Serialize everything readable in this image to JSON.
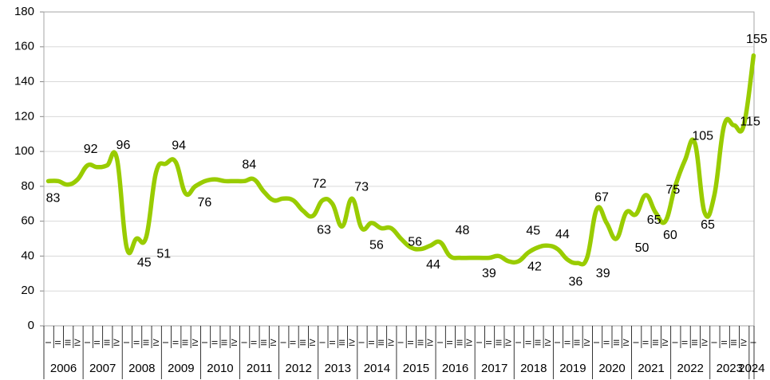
{
  "chart_data": {
    "type": "line",
    "categories": [
      "I",
      "II",
      "III",
      "IV",
      "I",
      "II",
      "III",
      "IV",
      "I",
      "II",
      "III",
      "IV",
      "I",
      "II",
      "III",
      "IV",
      "I",
      "II",
      "III",
      "IV",
      "I",
      "II",
      "III",
      "IV",
      "I",
      "II",
      "III",
      "IV",
      "I",
      "II",
      "III",
      "IV",
      "I",
      "II",
      "III",
      "IV",
      "I",
      "II",
      "III",
      "IV",
      "I",
      "II",
      "III",
      "IV",
      "I",
      "II",
      "III",
      "IV",
      "I",
      "II",
      "III",
      "IV",
      "I",
      "II",
      "III",
      "IV",
      "I",
      "II",
      "III",
      "IV",
      "I",
      "II",
      "III",
      "IV",
      "I",
      "II",
      "III",
      "IV",
      "I",
      "II",
      "III",
      "IV",
      "I"
    ],
    "years": [
      "2006",
      "2007",
      "2008",
      "2009",
      "2010",
      "2011",
      "2012",
      "2013",
      "2014",
      "2015",
      "2016",
      "2017",
      "2018",
      "2019",
      "2020",
      "2021",
      "2022",
      "2023",
      "2024"
    ],
    "series": [
      {
        "color": "#99cc00",
        "values": [
          83,
          83,
          81,
          84,
          92,
          91,
          92,
          96,
          45,
          50,
          51,
          88,
          93,
          94,
          76,
          80,
          83,
          84,
          83,
          83,
          83,
          84,
          77,
          72,
          73,
          72,
          66,
          63,
          72,
          70,
          57,
          73,
          56,
          59,
          56,
          56,
          50,
          45,
          44,
          46,
          48,
          40,
          39,
          39,
          39,
          39,
          40,
          37,
          37,
          42,
          45,
          46,
          44,
          38,
          36,
          39,
          67,
          59,
          50,
          65,
          64,
          75,
          65,
          60,
          80,
          95,
          105,
          65,
          75,
          115,
          115,
          115,
          155
        ],
        "value_labels": [
          "83",
          null,
          null,
          null,
          "92",
          null,
          null,
          "96",
          "45",
          null,
          "51",
          null,
          null,
          "94",
          "76",
          null,
          null,
          null,
          null,
          null,
          null,
          "84",
          null,
          null,
          null,
          null,
          null,
          "63",
          "72",
          null,
          null,
          "73",
          null,
          null,
          "56",
          "56",
          null,
          null,
          "44",
          null,
          "48",
          null,
          null,
          null,
          null,
          "39",
          null,
          null,
          null,
          "42",
          "45",
          null,
          "44",
          null,
          "36",
          "39",
          "67",
          null,
          "50",
          null,
          null,
          "75",
          "65",
          "60",
          null,
          null,
          "105",
          "65",
          null,
          null,
          null,
          "115",
          "155"
        ]
      }
    ],
    "ylim": [
      0,
      180
    ],
    "yticks": [
      0,
      20,
      40,
      60,
      80,
      100,
      120,
      140,
      160,
      180
    ],
    "grid": true
  }
}
